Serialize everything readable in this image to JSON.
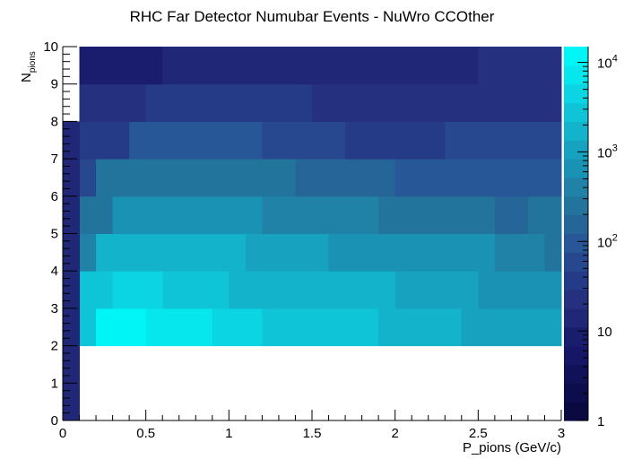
{
  "chart_data": {
    "type": "heatmap",
    "title": "RHC Far Detector Numubar Events - NuWro CCOther",
    "xlabel": "P_pions (GeV/c)",
    "ylabel_main": "N",
    "ylabel_sub": "pions",
    "xlim": [
      0,
      3
    ],
    "ylim": [
      0,
      10
    ],
    "x_ticks": [
      "0",
      "0.5",
      "1",
      "1.5",
      "2",
      "2.5",
      "3"
    ],
    "y_ticks": [
      "0",
      "1",
      "2",
      "3",
      "4",
      "5",
      "6",
      "7",
      "8",
      "9",
      "10"
    ],
    "colorbar": {
      "scale": "log",
      "range": [
        1,
        15000
      ],
      "ticks": [
        {
          "value": 1,
          "base": "1",
          "exp": ""
        },
        {
          "value": 10,
          "base": "10",
          "exp": ""
        },
        {
          "value": 100,
          "base": "10",
          "exp": "2"
        },
        {
          "value": 1000,
          "base": "10",
          "exp": "3"
        },
        {
          "value": 10000,
          "base": "10",
          "exp": "4"
        }
      ],
      "colors": [
        "#0b0a40",
        "#0d0d4d",
        "#111158",
        "#151766",
        "#1a1c6e",
        "#202777",
        "#25307e",
        "#263b87",
        "#27488f",
        "#275796",
        "#266597",
        "#23749c",
        "#1f82a6",
        "#1a92b3",
        "#17a2bf",
        "#14b3cc",
        "#10c4d8",
        "#0bd5e3",
        "#06e6ed",
        "#00f5f7"
      ]
    },
    "rows": [
      {
        "y": [
          2,
          3
        ],
        "cells": [
          {
            "x": [
              0.1,
              0.2
            ],
            "value": 3000
          },
          {
            "x": [
              0.2,
              0.5
            ],
            "value": 12000
          },
          {
            "x": [
              0.5,
              0.9
            ],
            "value": 6000
          },
          {
            "x": [
              0.9,
              1.2
            ],
            "value": 4000
          },
          {
            "x": [
              1.2,
              1.9
            ],
            "value": 2500
          },
          {
            "x": [
              1.9,
              2.4
            ],
            "value": 1600
          },
          {
            "x": [
              2.4,
              3.0
            ],
            "value": 1000
          }
        ]
      },
      {
        "y": [
          3,
          4
        ],
        "cells": [
          {
            "x": [
              0.1,
              0.3
            ],
            "value": 2500
          },
          {
            "x": [
              0.3,
              0.6
            ],
            "value": 5000
          },
          {
            "x": [
              0.6,
              1.0
            ],
            "value": 3000
          },
          {
            "x": [
              1.0,
              1.5
            ],
            "value": 2000
          },
          {
            "x": [
              1.5,
              2.0
            ],
            "value": 1500
          },
          {
            "x": [
              2.0,
              2.5
            ],
            "value": 1000
          },
          {
            "x": [
              2.5,
              3.0
            ],
            "value": 600
          }
        ]
      },
      {
        "y": [
          4,
          5
        ],
        "cells": [
          {
            "x": [
              0.1,
              0.2
            ],
            "value": 400
          },
          {
            "x": [
              0.2,
              0.4
            ],
            "value": 1500
          },
          {
            "x": [
              0.4,
              1.1
            ],
            "value": 2000
          },
          {
            "x": [
              1.1,
              1.6
            ],
            "value": 1000
          },
          {
            "x": [
              1.6,
              2.6
            ],
            "value": 600
          },
          {
            "x": [
              2.6,
              2.9
            ],
            "value": 350
          },
          {
            "x": [
              2.9,
              3.0
            ],
            "value": 200
          }
        ]
      },
      {
        "y": [
          5,
          6
        ],
        "cells": [
          {
            "x": [
              0.1,
              0.3
            ],
            "value": 250
          },
          {
            "x": [
              0.3,
              0.6
            ],
            "value": 600
          },
          {
            "x": [
              0.6,
              1.2
            ],
            "value": 700
          },
          {
            "x": [
              1.2,
              1.9
            ],
            "value": 400
          },
          {
            "x": [
              1.9,
              2.6
            ],
            "value": 250
          },
          {
            "x": [
              2.6,
              2.8
            ],
            "value": 150
          },
          {
            "x": [
              2.8,
              3.0
            ],
            "value": 300
          }
        ]
      },
      {
        "y": [
          6,
          7
        ],
        "cells": [
          {
            "x": [
              0.1,
              0.2
            ],
            "value": 60
          },
          {
            "x": [
              0.2,
              0.5
            ],
            "value": 200
          },
          {
            "x": [
              0.5,
              0.7
            ],
            "value": 300
          },
          {
            "x": [
              0.7,
              1.4
            ],
            "value": 250
          },
          {
            "x": [
              1.4,
              2.0
            ],
            "value": 150
          },
          {
            "x": [
              2.0,
              2.5
            ],
            "value": 100
          },
          {
            "x": [
              2.5,
              3.0
            ],
            "value": 80
          }
        ]
      },
      {
        "y": [
          7,
          8
        ],
        "cells": [
          {
            "x": [
              0.1,
              0.4
            ],
            "value": 40
          },
          {
            "x": [
              0.4,
              1.2
            ],
            "value": 80
          },
          {
            "x": [
              1.2,
              1.7
            ],
            "value": 60
          },
          {
            "x": [
              1.7,
              2.3
            ],
            "value": 40
          },
          {
            "x": [
              2.3,
              3.0
            ],
            "value": 50
          }
        ]
      },
      {
        "y": [
          8,
          9
        ],
        "cells": [
          {
            "x": [
              0.1,
              0.5
            ],
            "value": 20
          },
          {
            "x": [
              0.5,
              1.5
            ],
            "value": 30
          },
          {
            "x": [
              1.5,
              2.2
            ],
            "value": 20
          },
          {
            "x": [
              2.2,
              3.0
            ],
            "value": 25
          }
        ]
      },
      {
        "y": [
          9,
          10
        ],
        "cells": [
          {
            "x": [
              0.1,
              0.6
            ],
            "value": 8
          },
          {
            "x": [
              0.6,
              1.5
            ],
            "value": 15
          },
          {
            "x": [
              1.5,
              2.5
            ],
            "value": 12
          },
          {
            "x": [
              2.5,
              3.0
            ],
            "value": 18
          }
        ]
      },
      {
        "y": [
          0,
          8
        ],
        "cells": [
          {
            "x": [
              0,
              0.1
            ],
            "value": 15
          }
        ]
      },
      {
        "y": [
          8,
          10
        ],
        "cells": [
          {
            "x": [
              0,
              0.1
            ],
            "value": 0
          }
        ]
      }
    ]
  }
}
